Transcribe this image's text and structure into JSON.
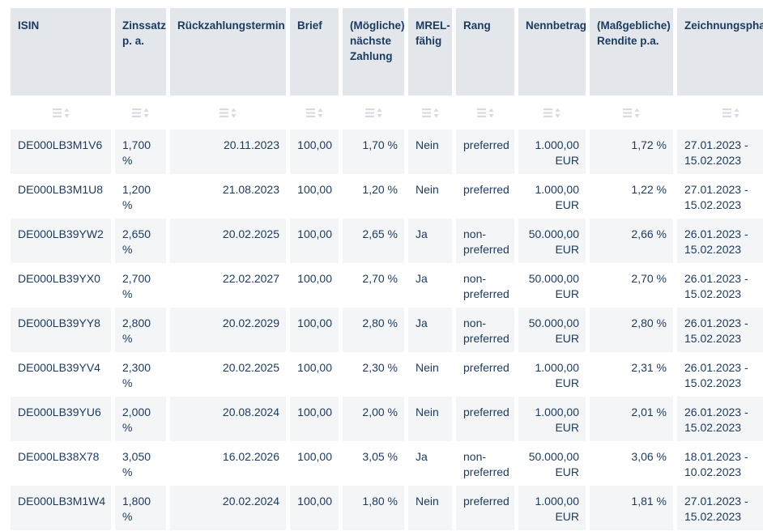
{
  "table": {
    "columns": [
      {
        "id": "isin",
        "label": "ISIN"
      },
      {
        "id": "zinssatz",
        "label": "Zinssatz\np. a."
      },
      {
        "id": "rueckzahlungstermin",
        "label": "Rückzahlungstermin"
      },
      {
        "id": "brief",
        "label": "Brief"
      },
      {
        "id": "naechste-zahlung",
        "label": "(Mögliche)\nnächste\nZahlung"
      },
      {
        "id": "mrel-faehig",
        "label": "MREL-\nfähig"
      },
      {
        "id": "rang",
        "label": "Rang"
      },
      {
        "id": "nennbetrag",
        "label": "Nennbetrag"
      },
      {
        "id": "rendite",
        "label": "(Maßgebliche)\nRendite p.a."
      },
      {
        "id": "zeichnungsphase",
        "label": "Zeichnungsphase"
      }
    ],
    "rows": [
      {
        "cells": [
          "DE000LB3M1V6",
          "1,700 %",
          "20.11.2023",
          "100,00",
          "1,70 %",
          "Nein",
          "preferred",
          "1.000,00\nEUR",
          "1,72 %",
          "27.01.2023 -\n15.02.2023"
        ]
      },
      {
        "cells": [
          "DE000LB3M1U8",
          "1,200 %",
          "21.08.2023",
          "100,00",
          "1,20 %",
          "Nein",
          "preferred",
          "1.000,00\nEUR",
          "1,22 %",
          "27.01.2023 -\n15.02.2023"
        ]
      },
      {
        "cells": [
          "DE000LB39YW2",
          "2,650 %",
          "20.02.2025",
          "100,00",
          "2,65 %",
          "Ja",
          "non-\npreferred",
          "50.000,00\nEUR",
          "2,66 %",
          "26.01.2023 -\n15.02.2023"
        ]
      },
      {
        "cells": [
          "DE000LB39YX0",
          "2,700 %",
          "22.02.2027",
          "100,00",
          "2,70 %",
          "Ja",
          "non-\npreferred",
          "50.000,00\nEUR",
          "2,70 %",
          "26.01.2023 -\n15.02.2023"
        ]
      },
      {
        "cells": [
          "DE000LB39YY8",
          "2,800 %",
          "20.02.2029",
          "100,00",
          "2,80 %",
          "Ja",
          "non-\npreferred",
          "50.000,00\nEUR",
          "2,80 %",
          "26.01.2023 -\n15.02.2023"
        ]
      },
      {
        "cells": [
          "DE000LB39YV4",
          "2,300 %",
          "20.02.2025",
          "100,00",
          "2,30 %",
          "Nein",
          "preferred",
          "1.000,00\nEUR",
          "2,31 %",
          "26.01.2023 -\n15.02.2023"
        ]
      },
      {
        "cells": [
          "DE000LB39YU6",
          "2,000 %",
          "20.08.2024",
          "100,00",
          "2,00 %",
          "Nein",
          "preferred",
          "1.000,00\nEUR",
          "2,01 %",
          "26.01.2023 -\n15.02.2023"
        ]
      },
      {
        "cells": [
          "DE000LB38X78",
          "3,050 %",
          "16.02.2026",
          "100,00",
          "3,05 %",
          "Ja",
          "non-\npreferred",
          "50.000,00\nEUR",
          "3,06 %",
          "18.01.2023 -\n10.02.2023"
        ]
      },
      {
        "cells": [
          "DE000LB3M1W4",
          "1,800 %",
          "20.02.2024",
          "100,00",
          "1,80 %",
          "Nein",
          "preferred",
          "1.000,00\nEUR",
          "1,81 %",
          "27.01.2023 -\n15.02.2023"
        ]
      }
    ],
    "icons": {
      "sort_filter_icon": "list-sort-icon"
    },
    "colors": {
      "header_bg": "#e3e7ec",
      "stripe_bg": "#f3f5f6",
      "text": "#1a3a5f",
      "icon": "#d7dbdf"
    }
  }
}
